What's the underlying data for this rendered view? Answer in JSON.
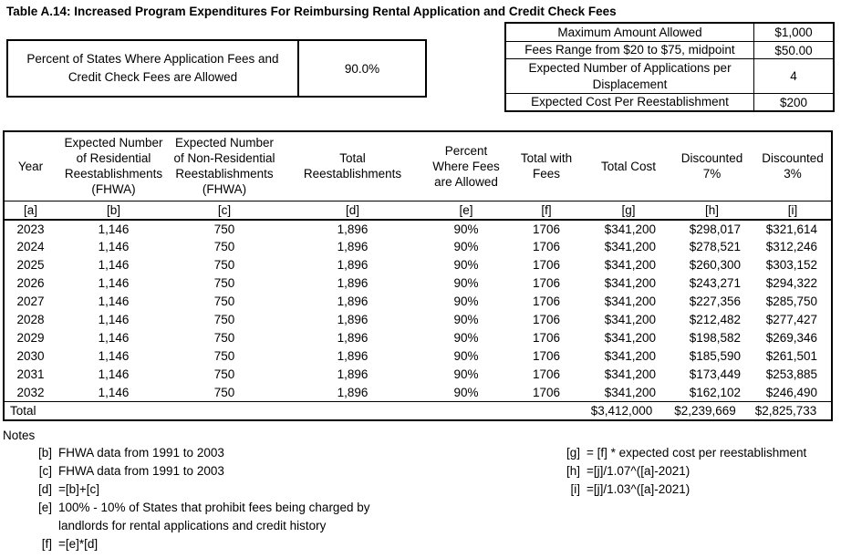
{
  "title": "Table A.14: Increased Program Expenditures For Reimbursing Rental Application and Credit Check Fees",
  "percent_box": {
    "label": "Percent of States Where Application Fees and\nCredit Check Fees are Allowed",
    "value": "90.0%"
  },
  "assumptions_box": {
    "rows": [
      {
        "label": "Maximum Amount Allowed",
        "value": "$1,000"
      },
      {
        "label": "Fees Range from $20 to $75, midpoint",
        "value": "$50.00"
      },
      {
        "label": "Expected Number of Applications per\nDisplacement",
        "value": "4"
      },
      {
        "label": "Expected Cost Per Reestablishment",
        "value": "$200"
      }
    ]
  },
  "table": {
    "headers": [
      "Year",
      "Expected Number\nof Residential\nReestablishments\n(FHWA)",
      "Expected Number\nof Non-Residential\nReestablishments\n(FHWA)",
      "Total\nReestablishments",
      "Percent\nWhere Fees\nare Allowed",
      "Total with\nFees",
      "Total Cost",
      "Discounted\n7%",
      "Discounted\n3%"
    ],
    "column_letters": [
      "[a]",
      "[b]",
      "[c]",
      "[d]",
      "[e]",
      "[f]",
      "[g]",
      "[h]",
      "[i]"
    ],
    "rows": [
      [
        "2023",
        "1,146",
        "750",
        "1,896",
        "90%",
        "1706",
        "$341,200",
        "$298,017",
        "$321,614"
      ],
      [
        "2024",
        "1,146",
        "750",
        "1,896",
        "90%",
        "1706",
        "$341,200",
        "$278,521",
        "$312,246"
      ],
      [
        "2025",
        "1,146",
        "750",
        "1,896",
        "90%",
        "1706",
        "$341,200",
        "$260,300",
        "$303,152"
      ],
      [
        "2026",
        "1,146",
        "750",
        "1,896",
        "90%",
        "1706",
        "$341,200",
        "$243,271",
        "$294,322"
      ],
      [
        "2027",
        "1,146",
        "750",
        "1,896",
        "90%",
        "1706",
        "$341,200",
        "$227,356",
        "$285,750"
      ],
      [
        "2028",
        "1,146",
        "750",
        "1,896",
        "90%",
        "1706",
        "$341,200",
        "$212,482",
        "$277,427"
      ],
      [
        "2029",
        "1,146",
        "750",
        "1,896",
        "90%",
        "1706",
        "$341,200",
        "$198,582",
        "$269,346"
      ],
      [
        "2030",
        "1,146",
        "750",
        "1,896",
        "90%",
        "1706",
        "$341,200",
        "$185,590",
        "$261,501"
      ],
      [
        "2031",
        "1,146",
        "750",
        "1,896",
        "90%",
        "1706",
        "$341,200",
        "$173,449",
        "$253,885"
      ],
      [
        "2032",
        "1,146",
        "750",
        "1,896",
        "90%",
        "1706",
        "$341,200",
        "$162,102",
        "$246,490"
      ]
    ],
    "total_row": [
      "Total",
      "",
      "",
      "",
      "",
      "",
      "$3,412,000",
      "$2,239,669",
      "$2,825,733"
    ]
  },
  "notes": {
    "heading": "Notes",
    "left": [
      {
        "ref": "[b]",
        "text": "FHWA data from 1991 to 2003"
      },
      {
        "ref": "[c]",
        "text": "FHWA data from 1991 to 2003"
      },
      {
        "ref": "[d]",
        "text": "=[b]+[c]"
      },
      {
        "ref": "[e]",
        "text": "100% - 10% of States that prohibit fees being charged by\nlandlords for rental applications and credit history"
      },
      {
        "ref": "[f]",
        "text": "=[e]*[d]"
      }
    ],
    "right": [
      {
        "ref": "[g]",
        "text": "= [f] * expected cost per reestablishment"
      },
      {
        "ref": "[h]",
        "text": "=[j]/1.07^([a]-2021)"
      },
      {
        "ref": "[i]",
        "text": "=[j]/1.03^([a]-2021)"
      }
    ]
  }
}
